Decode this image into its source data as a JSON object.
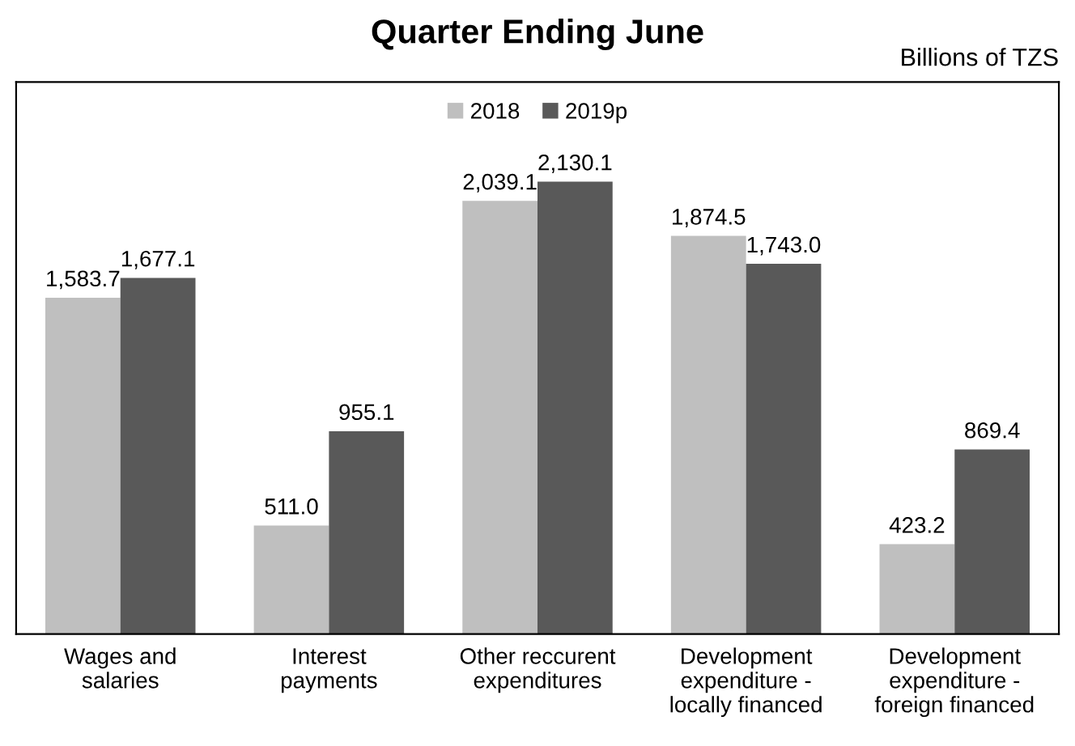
{
  "chart_data": {
    "type": "bar",
    "title": "Quarter Ending June",
    "annotations": [
      "Billions of TZS"
    ],
    "categories": [
      "Wages and salaries",
      "Interest payments",
      "Other reccurent expenditures",
      "Development expenditure - locally financed",
      "Development expenditure - foreign financed"
    ],
    "series": [
      {
        "name": "2018",
        "color": "#bfbfbf",
        "values": [
          1583.7,
          511.0,
          2039.1,
          1874.5,
          423.2
        ],
        "value_labels": [
          "1,583.7",
          "511.0",
          "2,039.1",
          "1,874.5",
          "423.2"
        ]
      },
      {
        "name": "2019p",
        "color": "#595959",
        "values": [
          1677.1,
          955.1,
          2130.1,
          1743.0,
          869.4
        ],
        "value_labels": [
          "1,677.1",
          "955.1",
          "2,130.1",
          "1,743.0",
          "869.4"
        ]
      }
    ],
    "legend": "top",
    "grid": false
  }
}
